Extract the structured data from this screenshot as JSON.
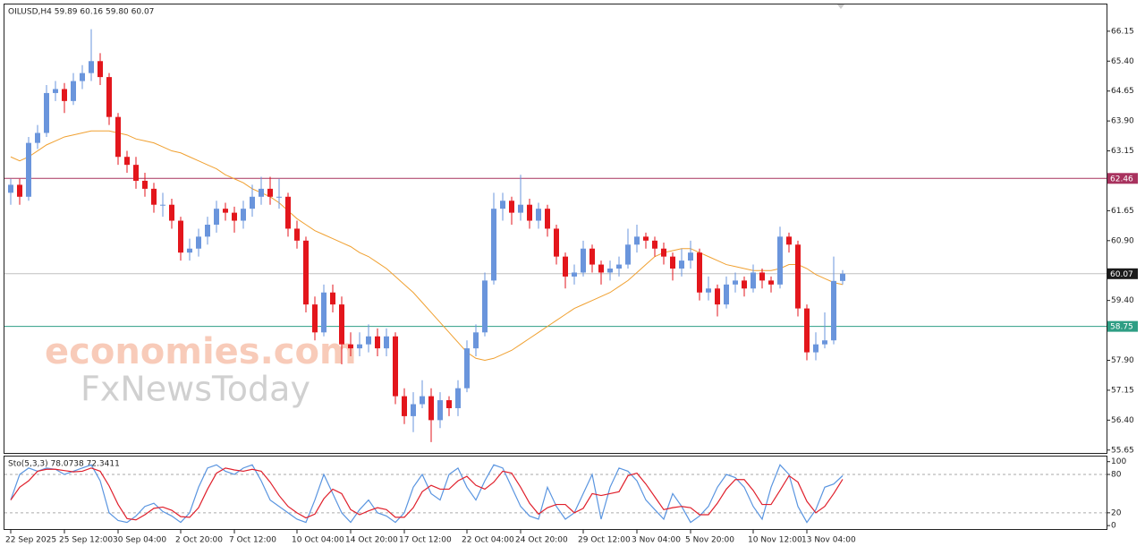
{
  "chart_data": {
    "type": "candlestick",
    "title": "OILUSD,H4  59.89 60.16 59.80 60.07",
    "watermark": [
      "economies.com",
      "FxNewsToday"
    ],
    "colors": {
      "up": "#6a95dc",
      "down": "#e3161c"
    },
    "categories": [
      "22 Sep 2025",
      null,
      null,
      null,
      null,
      null,
      "25 Sep 12:00",
      null,
      null,
      null,
      null,
      null,
      "30 Sep 04:00",
      null,
      null,
      null,
      null,
      null,
      null,
      "2 Oct 20:00",
      null,
      null,
      null,
      null,
      null,
      "7 Oct 12:00",
      null,
      null,
      null,
      null,
      null,
      null,
      "10 Oct 04:00",
      null,
      null,
      null,
      null,
      null,
      "14 Oct 20:00",
      null,
      null,
      null,
      null,
      null,
      "17 Oct 12:00",
      null,
      null,
      null,
      null,
      null,
      null,
      "22 Oct 04:00",
      null,
      null,
      null,
      null,
      null,
      "24 Oct 20:00",
      null,
      null,
      null,
      null,
      null,
      null,
      "29 Oct 12:00",
      null,
      null,
      null,
      null,
      null,
      "3 Nov 04:00",
      null,
      null,
      null,
      null,
      null,
      "5 Nov 20:00",
      null,
      null,
      null,
      null,
      null,
      null,
      "10 Nov 12:00",
      null,
      null,
      null,
      null,
      null,
      "13 Nov 04:00",
      null,
      null,
      null,
      null
    ],
    "candles": [
      [
        62.1,
        62.45,
        61.8,
        62.3
      ],
      [
        62.3,
        62.45,
        61.8,
        62.0
      ],
      [
        62.0,
        63.5,
        61.9,
        63.35
      ],
      [
        63.35,
        63.8,
        63.2,
        63.6
      ],
      [
        63.6,
        64.8,
        63.5,
        64.6
      ],
      [
        64.6,
        64.9,
        64.4,
        64.7
      ],
      [
        64.7,
        64.85,
        64.1,
        64.4
      ],
      [
        64.4,
        65.1,
        64.3,
        64.9
      ],
      [
        64.9,
        65.3,
        64.7,
        65.1
      ],
      [
        65.1,
        66.2,
        64.9,
        65.4
      ],
      [
        65.4,
        65.6,
        64.8,
        65.0
      ],
      [
        65.0,
        65.1,
        63.8,
        64.0
      ],
      [
        64.0,
        64.1,
        62.8,
        63.0
      ],
      [
        63.0,
        63.15,
        62.6,
        62.8
      ],
      [
        62.8,
        63.0,
        62.2,
        62.4
      ],
      [
        62.4,
        62.6,
        62.0,
        62.2
      ],
      [
        62.2,
        62.35,
        61.6,
        61.8
      ],
      [
        61.8,
        62.1,
        61.5,
        61.8
      ],
      [
        61.8,
        61.95,
        61.2,
        61.4
      ],
      [
        61.4,
        61.5,
        60.4,
        60.6
      ],
      [
        60.6,
        60.95,
        60.4,
        60.7
      ],
      [
        60.7,
        61.2,
        60.5,
        61.0
      ],
      [
        61.0,
        61.5,
        60.8,
        61.3
      ],
      [
        61.3,
        61.9,
        61.1,
        61.7
      ],
      [
        61.7,
        61.85,
        61.4,
        61.6
      ],
      [
        61.6,
        61.75,
        61.1,
        61.4
      ],
      [
        61.4,
        61.9,
        61.2,
        61.7
      ],
      [
        61.7,
        62.3,
        61.5,
        62.0
      ],
      [
        62.0,
        62.5,
        61.8,
        62.2
      ],
      [
        62.2,
        62.5,
        61.8,
        62.0
      ],
      [
        62.0,
        62.45,
        61.7,
        62.0
      ],
      [
        62.0,
        62.1,
        61.0,
        61.2
      ],
      [
        61.2,
        61.4,
        60.7,
        60.9
      ],
      [
        60.9,
        61.0,
        59.1,
        59.3
      ],
      [
        59.3,
        59.5,
        58.4,
        58.6
      ],
      [
        58.6,
        59.8,
        58.5,
        59.6
      ],
      [
        59.6,
        59.8,
        59.1,
        59.3
      ],
      [
        59.3,
        59.5,
        57.8,
        58.3
      ],
      [
        58.3,
        58.6,
        58.0,
        58.2
      ],
      [
        58.2,
        58.6,
        58.0,
        58.3
      ],
      [
        58.3,
        58.8,
        58.1,
        58.5
      ],
      [
        58.5,
        58.7,
        58.0,
        58.2
      ],
      [
        58.2,
        58.7,
        58.0,
        58.5
      ],
      [
        58.5,
        58.6,
        56.8,
        57.0
      ],
      [
        57.0,
        57.2,
        56.3,
        56.5
      ],
      [
        56.5,
        57.1,
        56.1,
        56.8
      ],
      [
        56.8,
        57.4,
        56.7,
        57.0
      ],
      [
        57.0,
        57.2,
        55.85,
        56.4
      ],
      [
        56.4,
        57.1,
        56.2,
        56.9
      ],
      [
        56.9,
        57.0,
        56.5,
        56.7
      ],
      [
        56.7,
        57.4,
        56.5,
        57.2
      ],
      [
        57.2,
        58.4,
        57.1,
        58.2
      ],
      [
        58.2,
        58.8,
        58.0,
        58.6
      ],
      [
        58.6,
        60.1,
        58.5,
        59.9
      ],
      [
        59.9,
        62.1,
        59.8,
        61.7
      ],
      [
        61.7,
        62.1,
        61.4,
        61.9
      ],
      [
        61.9,
        62.0,
        61.3,
        61.6
      ],
      [
        61.6,
        62.55,
        61.4,
        61.8
      ],
      [
        61.8,
        61.95,
        61.2,
        61.4
      ],
      [
        61.4,
        61.85,
        61.2,
        61.7
      ],
      [
        61.7,
        61.8,
        61.0,
        61.2
      ],
      [
        61.2,
        61.3,
        60.3,
        60.5
      ],
      [
        60.5,
        60.6,
        59.7,
        60.0
      ],
      [
        60.0,
        60.3,
        59.8,
        60.1
      ],
      [
        60.1,
        60.9,
        60.0,
        60.7
      ],
      [
        60.7,
        60.8,
        60.1,
        60.3
      ],
      [
        60.3,
        60.4,
        59.8,
        60.1
      ],
      [
        60.1,
        60.4,
        59.9,
        60.2
      ],
      [
        60.2,
        60.5,
        60.0,
        60.3
      ],
      [
        60.3,
        61.2,
        60.2,
        60.8
      ],
      [
        60.8,
        61.3,
        60.6,
        61.0
      ],
      [
        61.0,
        61.1,
        60.7,
        60.9
      ],
      [
        60.9,
        61.0,
        60.5,
        60.7
      ],
      [
        60.7,
        60.85,
        60.3,
        60.5
      ],
      [
        60.5,
        60.6,
        59.9,
        60.2
      ],
      [
        60.2,
        60.7,
        60.0,
        60.4
      ],
      [
        60.4,
        60.9,
        60.2,
        60.6
      ],
      [
        60.6,
        60.7,
        59.4,
        59.6
      ],
      [
        59.6,
        60.0,
        59.4,
        59.7
      ],
      [
        59.7,
        59.8,
        59.0,
        59.3
      ],
      [
        59.3,
        60.0,
        59.2,
        59.8
      ],
      [
        59.8,
        60.1,
        59.6,
        59.9
      ],
      [
        59.9,
        60.0,
        59.5,
        59.7
      ],
      [
        59.7,
        60.3,
        59.6,
        60.1
      ],
      [
        60.1,
        60.2,
        59.7,
        59.9
      ],
      [
        59.9,
        60.0,
        59.6,
        59.8
      ],
      [
        59.8,
        61.25,
        59.7,
        61.0
      ],
      [
        61.0,
        61.1,
        60.6,
        60.8
      ],
      [
        60.8,
        60.9,
        59.0,
        59.2
      ],
      [
        59.2,
        59.3,
        57.9,
        58.1
      ],
      [
        58.1,
        58.6,
        57.9,
        58.3
      ],
      [
        58.3,
        59.1,
        58.2,
        58.4
      ],
      [
        58.4,
        60.5,
        58.3,
        59.89
      ],
      [
        59.89,
        60.16,
        59.8,
        60.07
      ]
    ],
    "ma": {
      "color": "#f0a030",
      "values": [
        63.0,
        62.9,
        63.0,
        63.15,
        63.3,
        63.4,
        63.5,
        63.55,
        63.6,
        63.65,
        63.65,
        63.65,
        63.6,
        63.55,
        63.45,
        63.4,
        63.35,
        63.25,
        63.15,
        63.1,
        63.0,
        62.9,
        62.8,
        62.7,
        62.55,
        62.45,
        62.35,
        62.2,
        62.1,
        62.0,
        61.85,
        61.65,
        61.45,
        61.3,
        61.15,
        61.05,
        60.95,
        60.85,
        60.75,
        60.6,
        60.5,
        60.35,
        60.2,
        60.0,
        59.8,
        59.6,
        59.35,
        59.1,
        58.85,
        58.6,
        58.35,
        58.1,
        57.95,
        57.9,
        57.95,
        58.05,
        58.15,
        58.3,
        58.45,
        58.6,
        58.75,
        58.9,
        59.05,
        59.2,
        59.3,
        59.4,
        59.5,
        59.6,
        59.75,
        59.9,
        60.1,
        60.3,
        60.5,
        60.6,
        60.65,
        60.7,
        60.7,
        60.6,
        60.5,
        60.4,
        60.3,
        60.25,
        60.2,
        60.15,
        60.15,
        60.15,
        60.2,
        60.3,
        60.3,
        60.2,
        60.05,
        59.95,
        59.85,
        59.8
      ]
    },
    "levels": [
      {
        "value": 62.46,
        "color": "#a8325e"
      },
      {
        "value": 58.75,
        "color": "#2e9e84"
      },
      {
        "value": 60.07,
        "color": "#1a1a1a"
      }
    ],
    "ylim": [
      55.6,
      66.82
    ],
    "yticks": [
      66.15,
      {
        "value": 65.4,
        "label": "65.40"
      },
      64.65,
      {
        "value": 63.9,
        "label": "63.90"
      },
      63.15,
      61.65,
      {
        "value": 60.9,
        "label": "60.90"
      },
      {
        "value": 59.4,
        "label": "59.40"
      },
      {
        "value": 57.9,
        "label": "57.90"
      },
      57.15,
      {
        "value": 56.4,
        "label": "56.40"
      },
      55.65
    ],
    "stochastic": {
      "title": "Sto(5,3,3) 78.0738 72.3411",
      "ylim": [
        -4,
        108
      ],
      "yticks": [
        100,
        80,
        20,
        0
      ],
      "levels": [
        80,
        20
      ],
      "series": [
        {
          "color": "#5a95e0",
          "values": [
            40,
            80,
            90,
            85,
            90,
            88,
            80,
            85,
            90,
            95,
            70,
            20,
            8,
            5,
            15,
            30,
            35,
            22,
            15,
            5,
            20,
            60,
            90,
            95,
            85,
            80,
            90,
            95,
            70,
            40,
            30,
            20,
            10,
            5,
            40,
            80,
            50,
            20,
            5,
            25,
            40,
            20,
            15,
            5,
            20,
            60,
            80,
            50,
            40,
            80,
            90,
            60,
            40,
            70,
            95,
            90,
            60,
            30,
            15,
            10,
            60,
            30,
            10,
            20,
            50,
            80,
            10,
            60,
            90,
            85,
            70,
            40,
            25,
            10,
            50,
            30,
            5,
            15,
            30,
            60,
            80,
            75,
            60,
            30,
            10,
            60,
            95,
            80,
            30,
            5,
            25,
            60,
            65,
            78.0738
          ]
        },
        {
          "color": "#e0202c",
          "values": [
            40,
            60,
            70,
            85,
            88,
            88,
            86,
            84,
            85,
            90,
            85,
            62,
            33,
            11,
            9,
            17,
            27,
            29,
            24,
            14,
            13,
            28,
            57,
            82,
            90,
            87,
            85,
            88,
            85,
            68,
            47,
            30,
            20,
            12,
            18,
            42,
            57,
            50,
            25,
            17,
            23,
            28,
            25,
            13,
            13,
            28,
            53,
            63,
            57,
            57,
            70,
            77,
            63,
            57,
            68,
            85,
            82,
            60,
            35,
            18,
            28,
            33,
            33,
            20,
            27,
            50,
            47,
            50,
            53,
            78,
            82,
            65,
            45,
            25,
            28,
            30,
            28,
            17,
            17,
            35,
            57,
            72,
            72,
            55,
            33,
            33,
            55,
            78,
            68,
            38,
            20,
            30,
            50,
            72.3411
          ]
        }
      ]
    }
  }
}
